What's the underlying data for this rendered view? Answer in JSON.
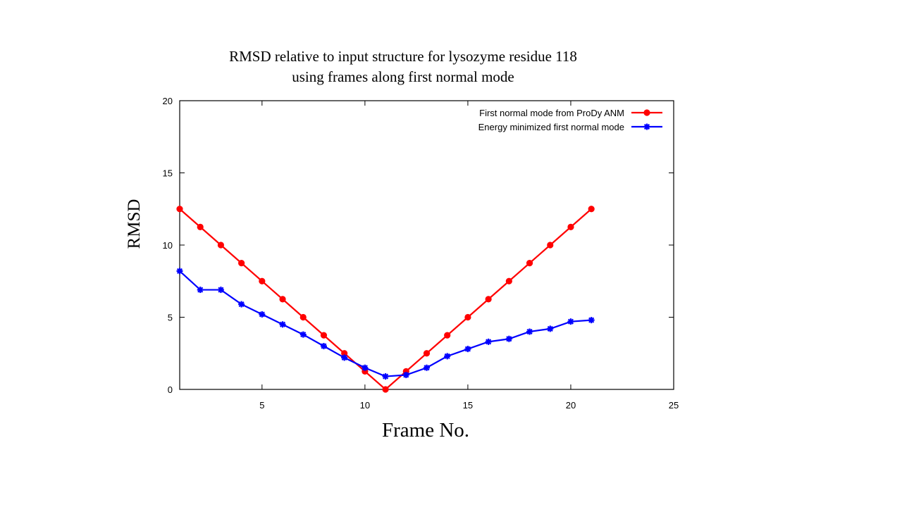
{
  "chart_data": {
    "type": "line",
    "title": [
      "RMSD relative to input structure for lysozyme residue 118",
      "using frames along first normal mode"
    ],
    "xlabel": "Frame No.",
    "ylabel": "RMSD",
    "xlim": [
      1,
      25
    ],
    "ylim": [
      0,
      20
    ],
    "xticks": [
      5,
      10,
      15,
      20,
      25
    ],
    "yticks": [
      0,
      5,
      10,
      15,
      20
    ],
    "grid": false,
    "legend_position": "top-right",
    "x": [
      1,
      2,
      3,
      4,
      5,
      6,
      7,
      8,
      9,
      10,
      11,
      12,
      13,
      14,
      15,
      16,
      17,
      18,
      19,
      20,
      21
    ],
    "series": [
      {
        "name": "First normal mode from ProDy ANM",
        "color": "#ff0000",
        "marker": "circle",
        "values": [
          12.5,
          11.25,
          10.0,
          8.75,
          7.5,
          6.25,
          5.0,
          3.75,
          2.5,
          1.25,
          0.0,
          1.25,
          2.5,
          3.75,
          5.0,
          6.25,
          7.5,
          8.75,
          10.0,
          11.25,
          12.5
        ]
      },
      {
        "name": "Energy minimized first normal mode",
        "color": "#0000ff",
        "marker": "star",
        "values": [
          8.2,
          6.9,
          6.9,
          5.9,
          5.2,
          4.5,
          3.8,
          3.0,
          2.2,
          1.5,
          0.9,
          1.0,
          1.5,
          2.3,
          2.8,
          3.3,
          3.5,
          4.0,
          4.2,
          4.7,
          4.8
        ]
      }
    ]
  }
}
